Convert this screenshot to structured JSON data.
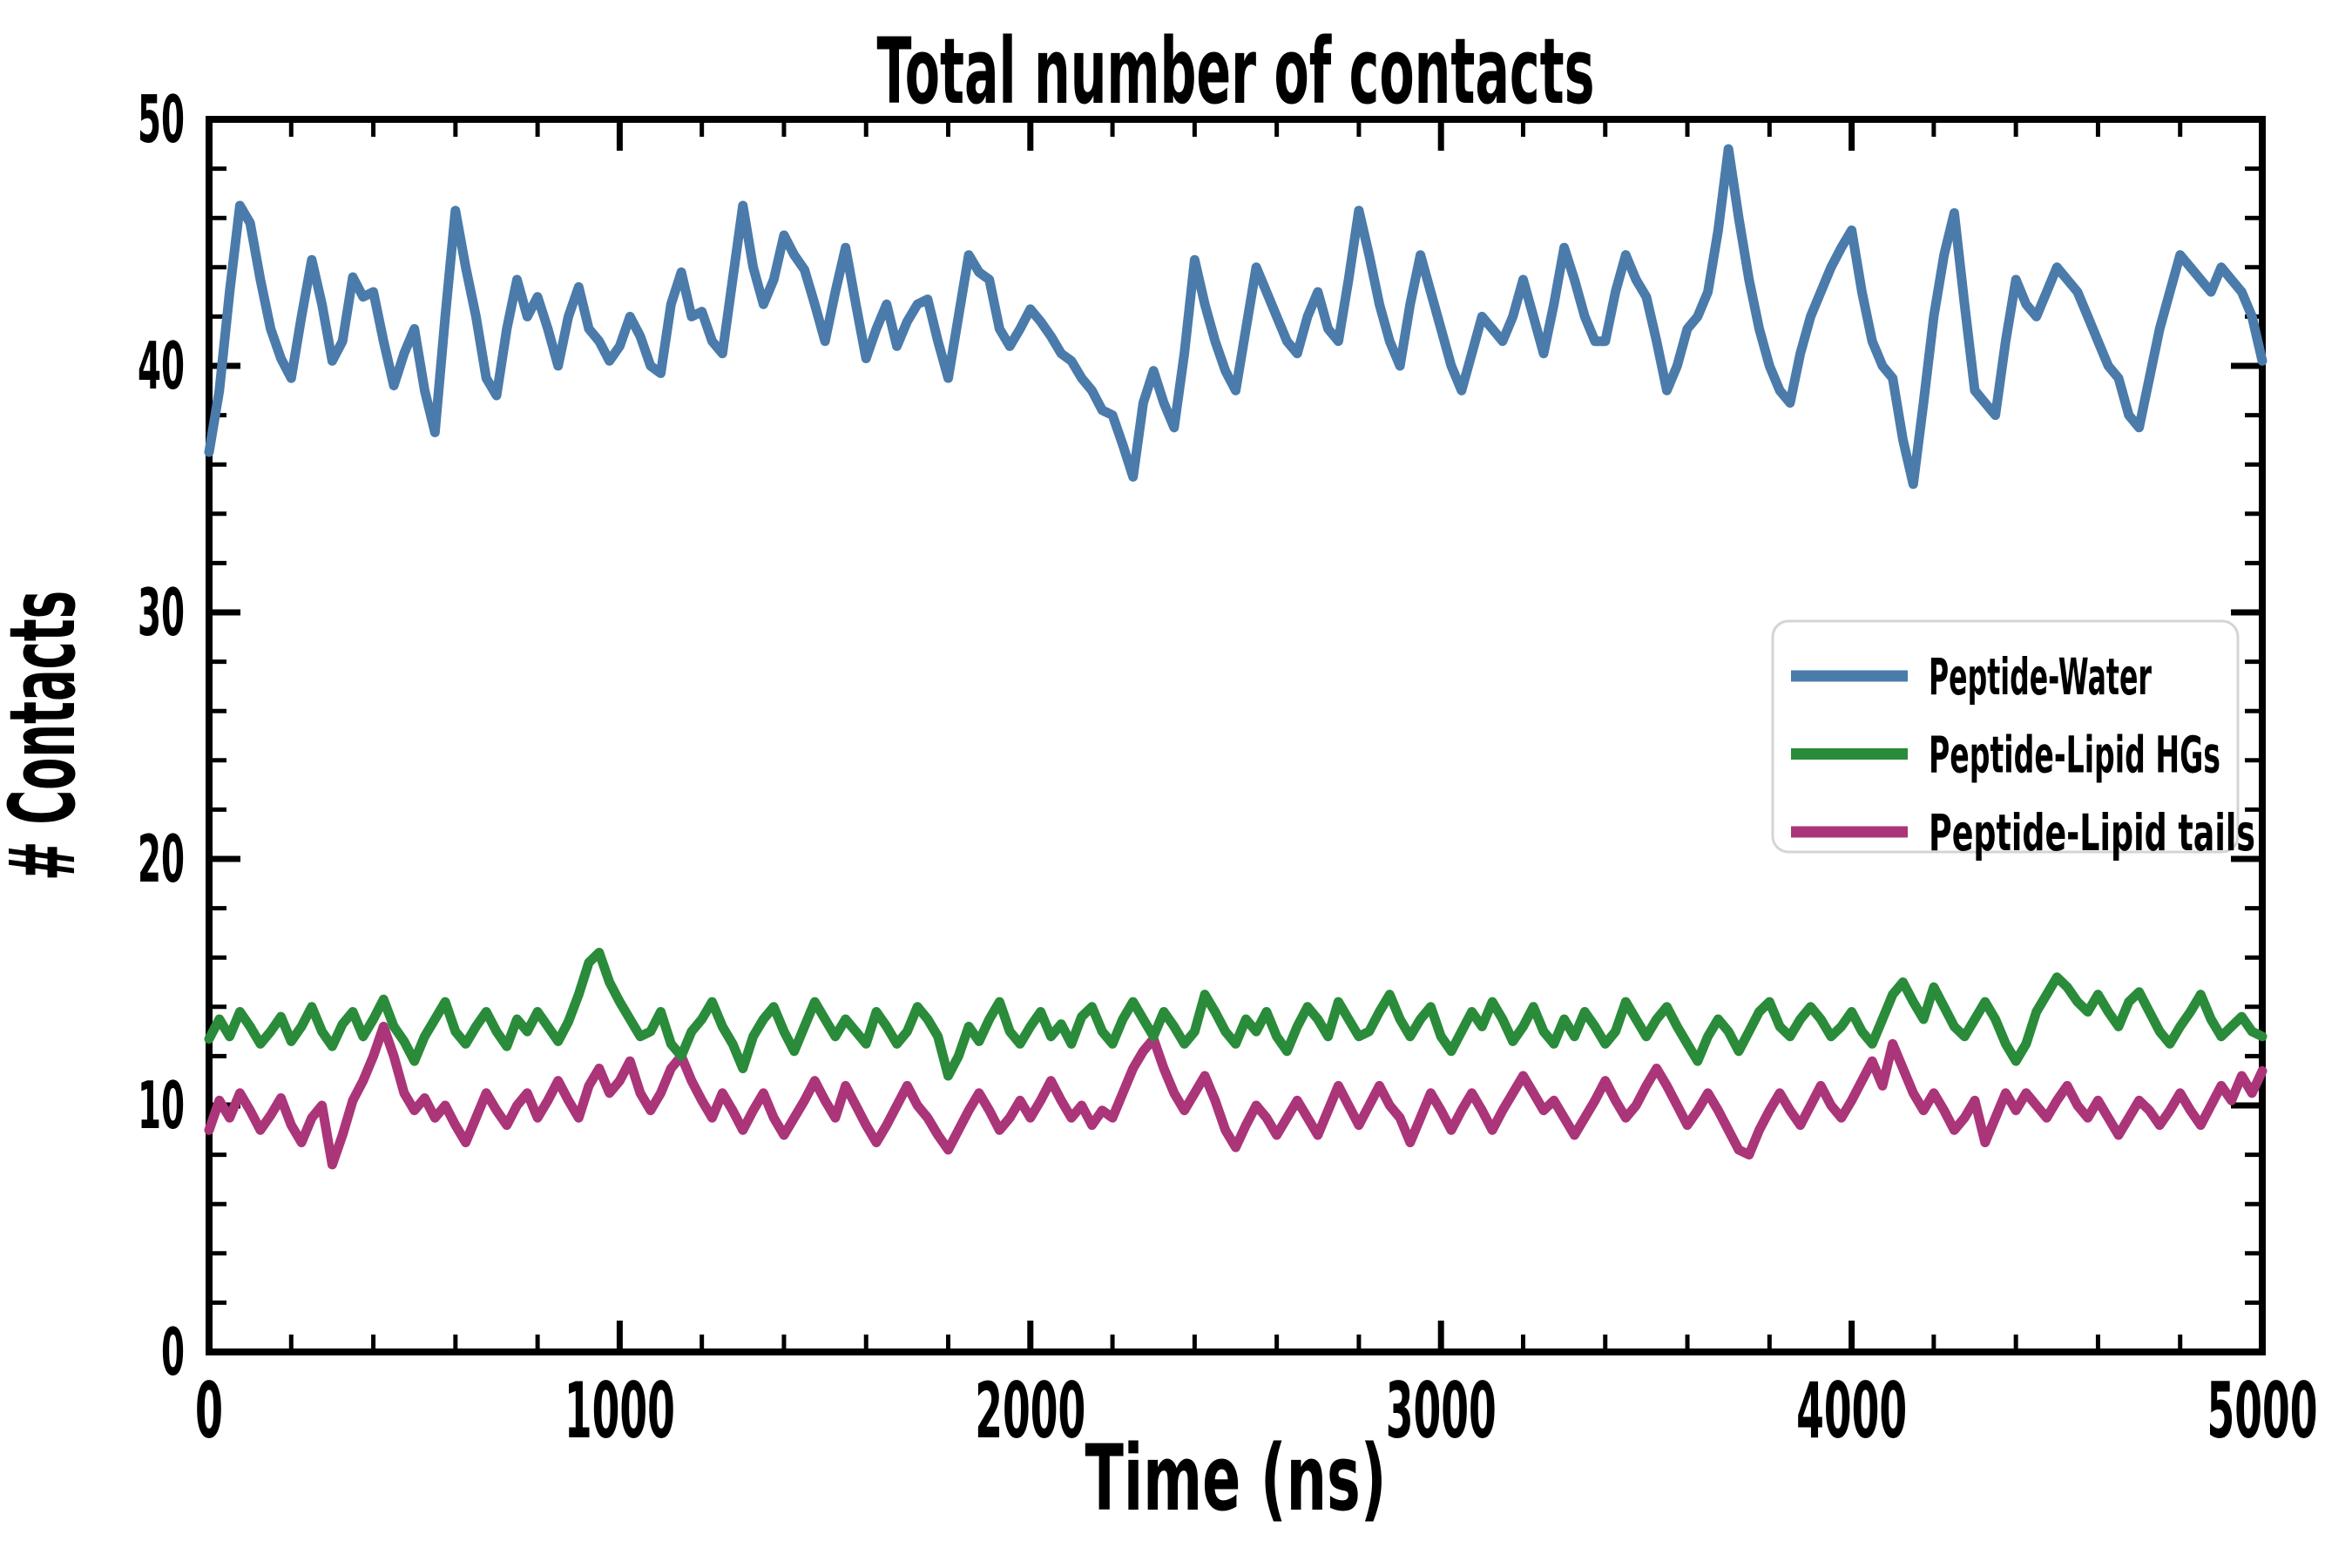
{
  "figure": {
    "background": "#ffffff",
    "text_color": "#000000",
    "spine_color": "#000000"
  },
  "chart_data": {
    "type": "line",
    "title": "Total number of contacts",
    "xlabel": "Time (ns)",
    "ylabel": "# Contacts",
    "xlim": [
      0,
      5000
    ],
    "ylim": [
      0,
      50
    ],
    "x_major_ticks": [
      0,
      1000,
      2000,
      3000,
      4000,
      5000
    ],
    "x_minor_step": 200,
    "y_major_ticks": [
      0,
      10,
      20,
      30,
      40,
      50
    ],
    "y_minor_step": 2,
    "grid": false,
    "legend": {
      "position": "center-right",
      "border_color": "#d4d4d4",
      "background": "#ffffff",
      "entries": [
        "Peptide-Water",
        "Peptide-Lipid HGs",
        "Peptide-Lipid tails"
      ]
    },
    "x_step": 25,
    "series": [
      {
        "name": "Peptide-Water",
        "color": "#4a7bab",
        "values": [
          36.5,
          39.0,
          43.0,
          46.5,
          45.8,
          43.5,
          41.5,
          40.3,
          39.5,
          42.0,
          44.3,
          42.5,
          40.2,
          41.0,
          43.6,
          42.8,
          43.0,
          41.0,
          39.2,
          40.5,
          41.5,
          39.0,
          37.3,
          42.0,
          46.3,
          44.0,
          42.0,
          39.5,
          38.8,
          41.5,
          43.5,
          42.0,
          42.8,
          41.5,
          40.0,
          42.0,
          43.2,
          41.5,
          41.0,
          40.2,
          40.8,
          42.0,
          41.2,
          40.0,
          39.7,
          42.5,
          43.8,
          42.0,
          42.2,
          41.0,
          40.5,
          43.5,
          46.5,
          44.0,
          42.5,
          43.5,
          45.3,
          44.5,
          43.9,
          42.5,
          41.0,
          43.0,
          44.8,
          42.5,
          40.3,
          41.5,
          42.5,
          40.8,
          41.8,
          42.5,
          42.7,
          41.0,
          39.5,
          42.0,
          44.5,
          43.8,
          43.5,
          41.5,
          40.8,
          41.5,
          42.3,
          41.8,
          41.2,
          40.5,
          40.2,
          39.5,
          39.0,
          38.2,
          38.0,
          36.8,
          35.5,
          38.5,
          39.8,
          38.5,
          37.5,
          40.5,
          44.3,
          42.5,
          41.0,
          39.8,
          39.0,
          41.5,
          44.0,
          43.0,
          42.0,
          41.0,
          40.5,
          42.0,
          43.0,
          41.5,
          41.0,
          43.5,
          46.3,
          44.5,
          42.5,
          41.0,
          40.0,
          42.5,
          44.5,
          43.0,
          41.5,
          40.0,
          39.0,
          40.5,
          42.0,
          41.5,
          41.0,
          42.0,
          43.5,
          42.0,
          40.5,
          42.5,
          44.8,
          43.5,
          42.0,
          41.0,
          41.0,
          43.0,
          44.5,
          43.5,
          42.8,
          41.0,
          39.0,
          40.0,
          41.5,
          42.0,
          43.0,
          45.5,
          48.8,
          46.0,
          43.5,
          41.5,
          40.0,
          39.0,
          38.5,
          40.5,
          42.0,
          43.0,
          44.0,
          44.8,
          45.5,
          43.0,
          41.0,
          40.0,
          39.5,
          37.0,
          35.2,
          38.5,
          42.0,
          44.5,
          46.2,
          42.5,
          39.0,
          38.5,
          38.0,
          41.0,
          43.5,
          42.5,
          42.0,
          43.0,
          44.0,
          43.5,
          43.0,
          42.0,
          41.0,
          40.0,
          39.5,
          38.0,
          37.5,
          39.5,
          41.5,
          43.0,
          44.5,
          44.0,
          43.5,
          43.0,
          44.0,
          43.5,
          43.0,
          42.0,
          40.2
        ]
      },
      {
        "name": "Peptide-Lipid HGs",
        "color": "#2a8b3a",
        "values": [
          12.7,
          13.5,
          12.8,
          13.8,
          13.2,
          12.5,
          13.0,
          13.6,
          12.6,
          13.2,
          14.0,
          13.0,
          12.4,
          13.3,
          13.8,
          12.8,
          13.5,
          14.3,
          13.2,
          12.6,
          11.8,
          12.8,
          13.5,
          14.2,
          13.0,
          12.5,
          13.2,
          13.8,
          13.0,
          12.4,
          13.5,
          13.0,
          13.8,
          13.2,
          12.6,
          13.4,
          14.5,
          15.8,
          16.2,
          15.0,
          14.2,
          13.5,
          12.8,
          13.0,
          13.8,
          12.5,
          12.0,
          13.0,
          13.5,
          14.2,
          13.2,
          12.5,
          11.5,
          12.8,
          13.5,
          14.0,
          13.0,
          12.2,
          13.2,
          14.2,
          13.5,
          12.8,
          13.5,
          13.0,
          12.5,
          13.8,
          13.2,
          12.5,
          13.0,
          14.0,
          13.5,
          12.8,
          11.2,
          12.0,
          13.2,
          12.6,
          13.5,
          14.2,
          13.0,
          12.5,
          13.2,
          13.8,
          12.8,
          13.3,
          12.5,
          13.6,
          14.0,
          13.0,
          12.5,
          13.5,
          14.2,
          13.5,
          12.8,
          13.8,
          13.2,
          12.5,
          13.0,
          14.5,
          13.8,
          13.0,
          12.5,
          13.5,
          13.0,
          13.8,
          12.8,
          12.2,
          13.2,
          14.0,
          13.5,
          12.8,
          14.2,
          13.5,
          12.8,
          13.0,
          13.8,
          14.5,
          13.5,
          12.8,
          13.5,
          14.0,
          12.8,
          12.2,
          13.0,
          13.8,
          13.2,
          14.2,
          13.5,
          12.6,
          13.2,
          14.0,
          13.0,
          12.5,
          13.5,
          12.8,
          13.8,
          13.2,
          12.5,
          13.0,
          14.2,
          13.5,
          12.8,
          13.5,
          14.0,
          13.2,
          12.5,
          11.8,
          12.8,
          13.5,
          13.0,
          12.2,
          13.0,
          13.8,
          14.2,
          13.2,
          12.8,
          13.5,
          14.0,
          13.5,
          12.8,
          13.2,
          13.8,
          13.0,
          12.5,
          13.5,
          14.5,
          15.0,
          14.2,
          13.5,
          14.8,
          14.0,
          13.2,
          12.8,
          13.5,
          14.2,
          13.5,
          12.5,
          11.8,
          12.5,
          13.8,
          14.5,
          15.2,
          14.8,
          14.2,
          13.8,
          14.5,
          13.8,
          13.2,
          14.2,
          14.6,
          13.8,
          13.0,
          12.5,
          13.2,
          13.8,
          14.5,
          13.5,
          12.8,
          13.2,
          13.6,
          13.0,
          12.8
        ]
      },
      {
        "name": "Peptide-Lipid tails",
        "color": "#ab3579",
        "values": [
          9.0,
          10.2,
          9.5,
          10.5,
          9.8,
          9.0,
          9.6,
          10.3,
          9.2,
          8.5,
          9.5,
          10.0,
          7.6,
          8.8,
          10.2,
          11.0,
          12.0,
          13.2,
          12.0,
          10.5,
          9.8,
          10.3,
          9.5,
          10.0,
          9.2,
          8.5,
          9.5,
          10.5,
          9.8,
          9.2,
          10.0,
          10.5,
          9.5,
          10.2,
          11.0,
          10.2,
          9.5,
          10.8,
          11.5,
          10.5,
          11.0,
          11.8,
          10.5,
          9.8,
          10.5,
          11.5,
          12.0,
          11.0,
          10.2,
          9.5,
          10.5,
          9.8,
          9.0,
          9.8,
          10.5,
          9.5,
          8.8,
          9.5,
          10.2,
          11.0,
          10.2,
          9.5,
          10.8,
          10.0,
          9.2,
          8.5,
          9.2,
          10.0,
          10.8,
          10.0,
          9.5,
          8.8,
          8.2,
          9.0,
          9.8,
          10.5,
          9.8,
          9.0,
          9.5,
          10.2,
          9.5,
          10.2,
          11.0,
          10.2,
          9.5,
          10.0,
          9.2,
          9.8,
          9.5,
          10.5,
          11.5,
          12.2,
          12.7,
          11.5,
          10.5,
          9.8,
          10.5,
          11.2,
          10.2,
          9.0,
          8.3,
          9.2,
          10.0,
          9.5,
          8.8,
          9.5,
          10.2,
          9.5,
          8.8,
          9.8,
          10.8,
          10.0,
          9.2,
          10.0,
          10.8,
          10.0,
          9.5,
          8.5,
          9.5,
          10.5,
          9.8,
          9.0,
          9.8,
          10.5,
          9.8,
          9.0,
          9.8,
          10.5,
          11.2,
          10.5,
          9.8,
          10.2,
          9.5,
          8.8,
          9.5,
          10.2,
          11.0,
          10.2,
          9.5,
          10.0,
          10.8,
          11.5,
          10.8,
          10.0,
          9.2,
          9.8,
          10.5,
          9.8,
          9.0,
          8.2,
          8.0,
          9.0,
          9.8,
          10.5,
          9.8,
          9.2,
          10.0,
          10.8,
          10.0,
          9.5,
          10.2,
          11.0,
          11.8,
          10.8,
          12.5,
          11.5,
          10.5,
          9.8,
          10.5,
          9.8,
          9.0,
          9.5,
          10.2,
          8.5,
          9.5,
          10.5,
          9.8,
          10.5,
          10.0,
          9.5,
          10.2,
          10.8,
          10.0,
          9.5,
          10.2,
          9.5,
          8.8,
          9.5,
          10.2,
          9.8,
          9.2,
          9.8,
          10.5,
          9.8,
          9.2,
          10.0,
          10.8,
          10.2,
          11.2,
          10.5,
          11.4
        ]
      }
    ]
  }
}
